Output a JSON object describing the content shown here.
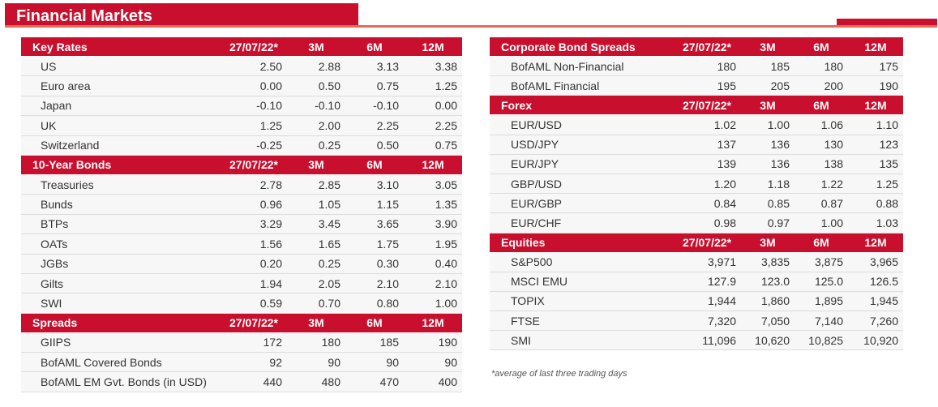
{
  "title": "Financial Markets",
  "left_sections": [
    {
      "header": [
        "Key Rates",
        "27/07/22*",
        "3M",
        "6M",
        "12M"
      ],
      "rows": [
        [
          "US",
          "2.50",
          "2.88",
          "3.13",
          "3.38"
        ],
        [
          "Euro area",
          "0.00",
          "0.50",
          "0.75",
          "1.25"
        ],
        [
          "Japan",
          "-0.10",
          "-0.10",
          "-0.10",
          "0.00"
        ],
        [
          "UK",
          "1.25",
          "2.00",
          "2.25",
          "2.25"
        ],
        [
          "Switzerland",
          "-0.25",
          "0.25",
          "0.50",
          "0.75"
        ]
      ]
    },
    {
      "header": [
        "10-Year Bonds",
        "27/07/22*",
        "3M",
        "6M",
        "12M"
      ],
      "rows": [
        [
          "Treasuries",
          "2.78",
          "2.85",
          "3.10",
          "3.05"
        ],
        [
          "Bunds",
          "0.96",
          "1.05",
          "1.15",
          "1.35"
        ],
        [
          "BTPs",
          "3.29",
          "3.45",
          "3.65",
          "3.90"
        ],
        [
          "OATs",
          "1.56",
          "1.65",
          "1.75",
          "1.95"
        ],
        [
          "JGBs",
          "0.20",
          "0.25",
          "0.30",
          "0.40"
        ],
        [
          "Gilts",
          "1.94",
          "2.05",
          "2.10",
          "2.10"
        ],
        [
          "SWI",
          "0.59",
          "0.70",
          "0.80",
          "1.00"
        ]
      ]
    },
    {
      "header": [
        "Spreads",
        "27/07/22*",
        "3M",
        "6M",
        "12M"
      ],
      "rows": [
        [
          "GIIPS",
          "172",
          "180",
          "185",
          "190"
        ],
        [
          "BofAML Covered Bonds",
          "92",
          "90",
          "90",
          "90"
        ],
        [
          "BofAML EM Gvt. Bonds (in USD)",
          "440",
          "480",
          "470",
          "400"
        ]
      ]
    }
  ],
  "right_sections": [
    {
      "header": [
        "Corporate Bond Spreads",
        "27/07/22*",
        "3M",
        "6M",
        "12M"
      ],
      "rows": [
        [
          "BofAML Non-Financial",
          "180",
          "185",
          "180",
          "175"
        ],
        [
          "BofAML Financial",
          "195",
          "205",
          "200",
          "190"
        ]
      ]
    },
    {
      "header": [
        "Forex",
        "27/07/22*",
        "3M",
        "6M",
        "12M"
      ],
      "rows": [
        [
          "EUR/USD",
          "1.02",
          "1.00",
          "1.06",
          "1.10"
        ],
        [
          "USD/JPY",
          "137",
          "136",
          "130",
          "123"
        ],
        [
          "EUR/JPY",
          "139",
          "136",
          "138",
          "135"
        ],
        [
          "GBP/USD",
          "1.20",
          "1.18",
          "1.22",
          "1.25"
        ],
        [
          "EUR/GBP",
          "0.84",
          "0.85",
          "0.87",
          "0.88"
        ],
        [
          "EUR/CHF",
          "0.98",
          "0.97",
          "1.00",
          "1.03"
        ]
      ]
    },
    {
      "header": [
        "Equities",
        "27/07/22*",
        "3M",
        "6M",
        "12M"
      ],
      "rows": [
        [
          "S&P500",
          "3,971",
          "3,835",
          "3,875",
          "3,965"
        ],
        [
          "MSCI EMU",
          "127.9",
          "123.0",
          "125.0",
          "126.5"
        ],
        [
          "TOPIX",
          "1,944",
          "1,860",
          "1,895",
          "1,945"
        ],
        [
          "FTSE",
          "7,320",
          "7,050",
          "7,140",
          "7,260"
        ],
        [
          "SMI",
          "11,096",
          "10,620",
          "10,825",
          "10,920"
        ]
      ]
    }
  ],
  "footnote": "*average of last three trading days",
  "colors": {
    "header_red": "#c8102e",
    "rule_salmon": "#e06d55",
    "row_bg": "#f7f7f7"
  }
}
